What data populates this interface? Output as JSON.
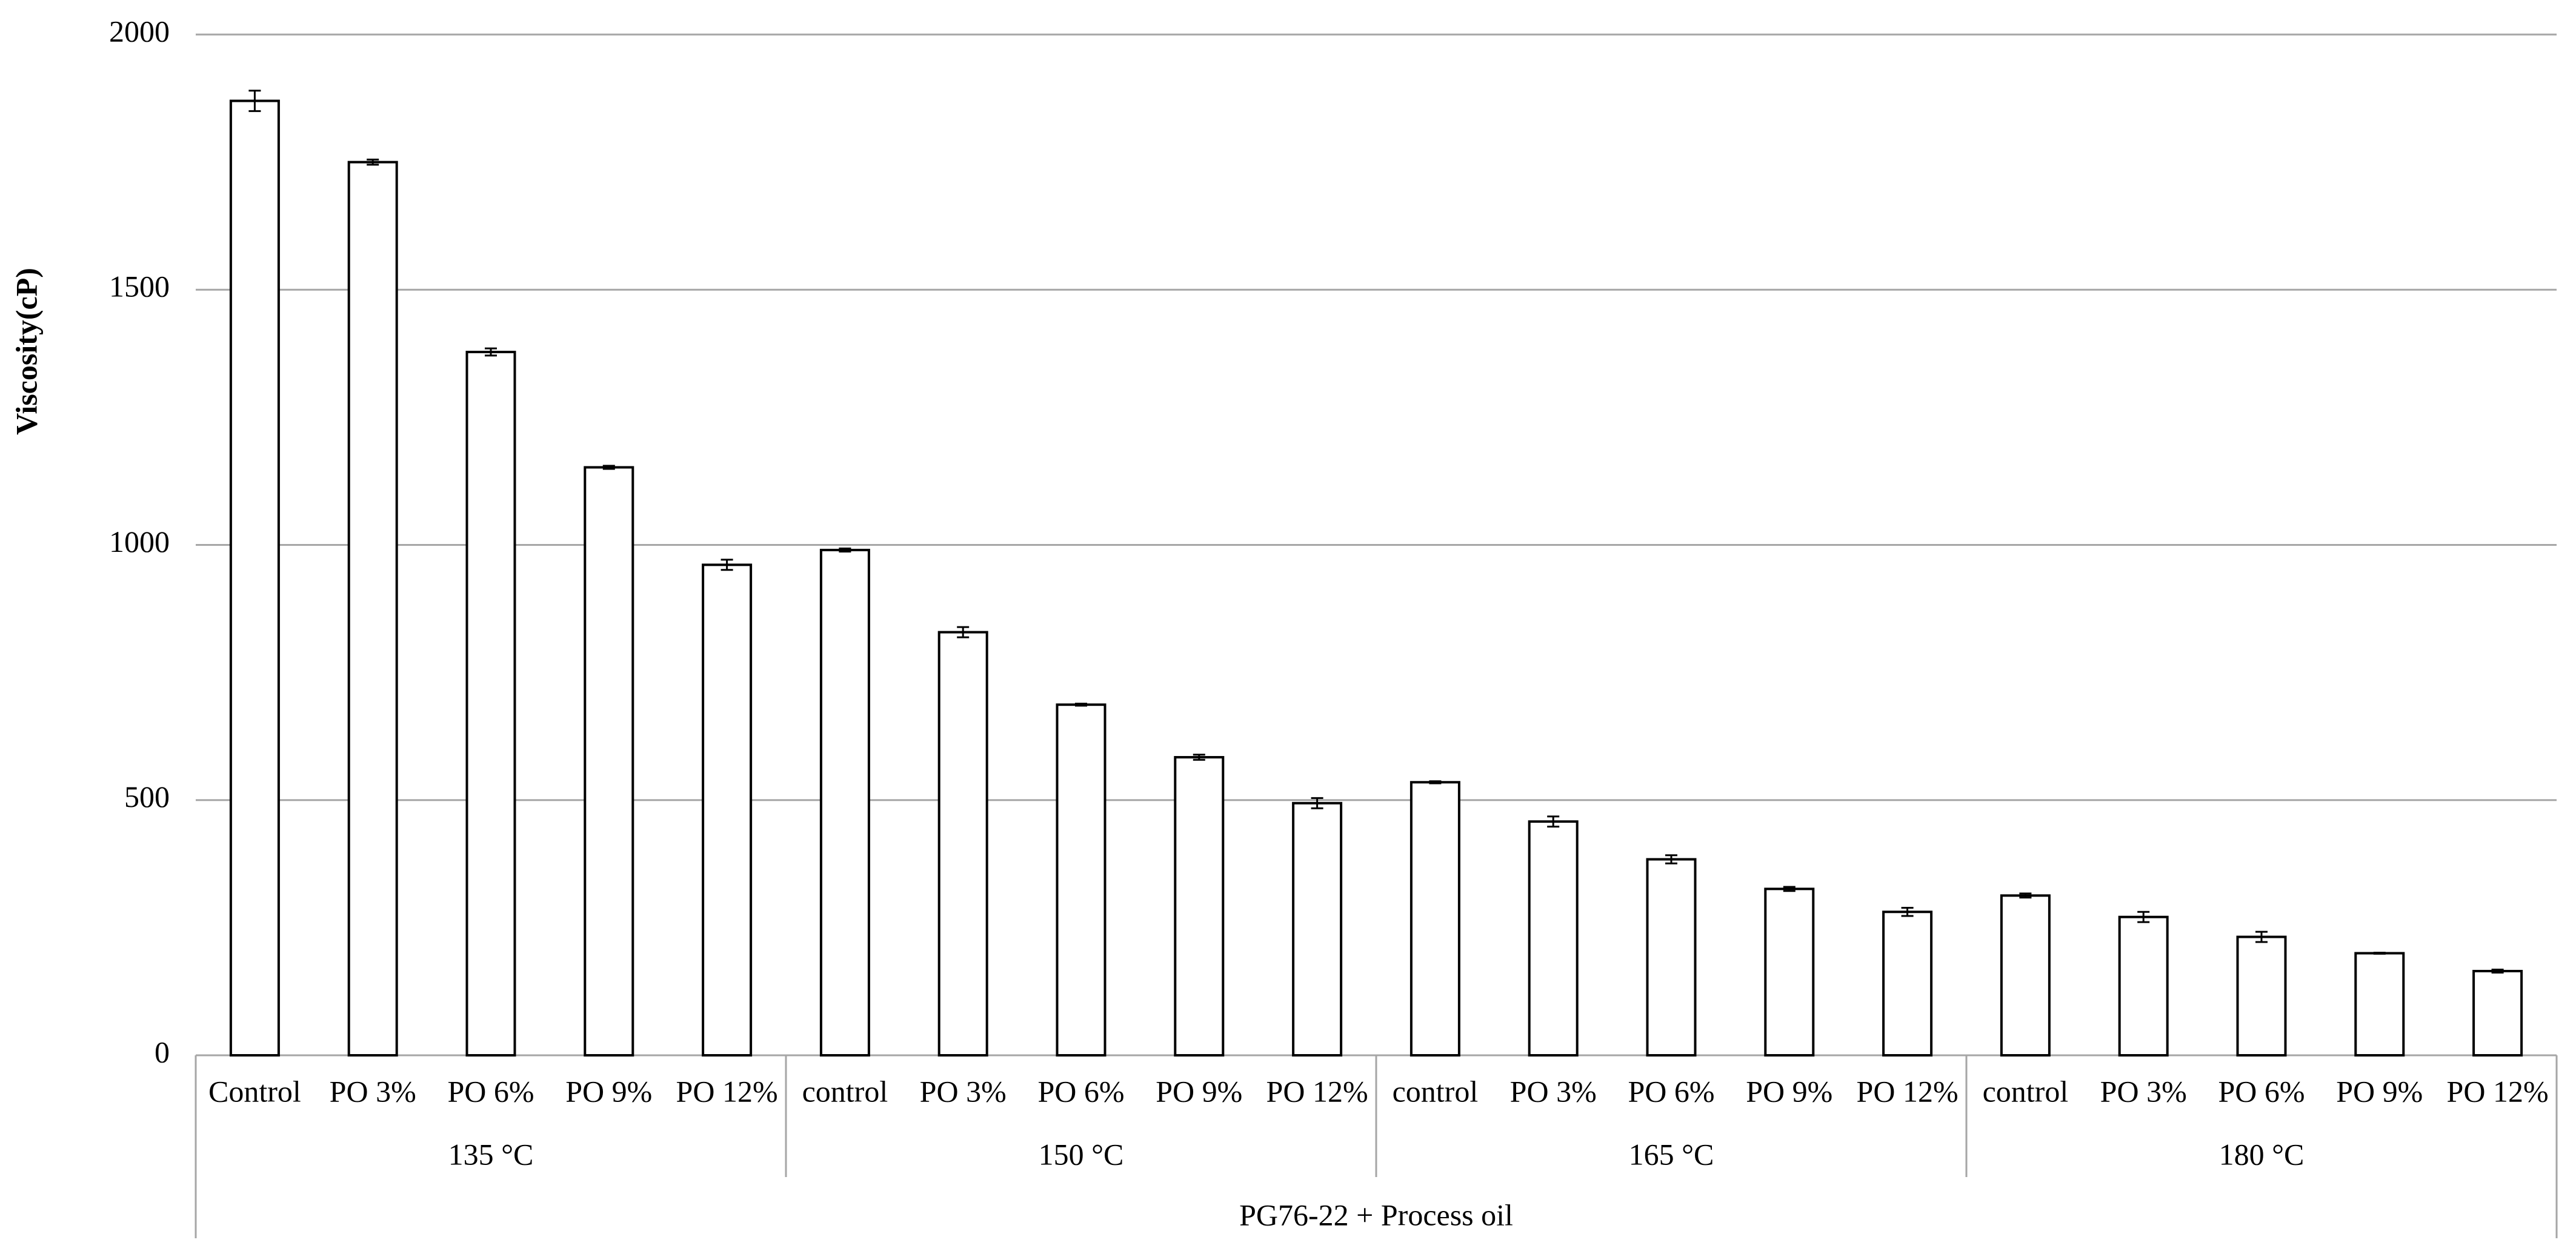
{
  "chart_data": {
    "type": "bar",
    "y_label": "Viscosity(cP)",
    "x_label": "PG76-22 + Process oil",
    "categories": [
      "Control",
      "PO 3%",
      "PO 6%",
      "PO 9%",
      "PO 12%",
      "control",
      "PO 3%",
      "PO 6%",
      "PO 9%",
      "PO 12%",
      "control",
      "PO 3%",
      "PO 6%",
      "PO 9%",
      "PO 12%",
      "control",
      "PO 3%",
      "PO 6%",
      "PO 9%",
      "PO 12%"
    ],
    "groups": [
      "135 °C",
      "150 °C",
      "165 °C",
      "180 °C"
    ],
    "values": [
      1870,
      1750,
      1378,
      1152,
      961,
      990,
      829,
      687,
      584,
      494,
      535,
      458,
      384,
      326,
      281,
      313,
      271,
      232,
      200,
      165
    ],
    "errors": [
      20,
      5,
      7,
      3,
      10,
      3,
      10,
      2,
      5,
      10,
      2,
      10,
      8,
      4,
      8,
      4,
      10,
      10,
      1,
      3
    ],
    "color": "#ffffff",
    "ylim": [
      0,
      2000
    ],
    "yticks": [
      0,
      500,
      1000,
      1500,
      2000
    ],
    "grid": true
  }
}
